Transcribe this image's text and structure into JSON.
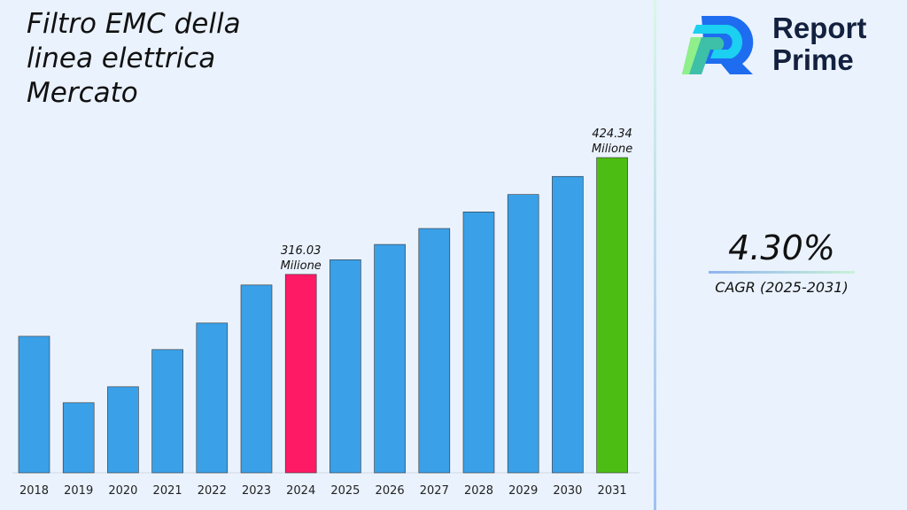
{
  "chart_data": {
    "type": "bar",
    "title": "Filtro EMC della linea elettrica Mercato",
    "categories": [
      "2018",
      "2019",
      "2020",
      "2021",
      "2022",
      "2023",
      "2024",
      "2025",
      "2026",
      "2027",
      "2028",
      "2029",
      "2030",
      "2031"
    ],
    "values": [
      258.6,
      197.0,
      211.8,
      246.3,
      270.9,
      306.2,
      316.03,
      329.6,
      343.8,
      358.6,
      374.0,
      390.1,
      406.9,
      424.34
    ],
    "ylim": [
      132,
      430
    ],
    "grid": false,
    "colors": {
      "default": "#3aa0e8",
      "highlight": "#ff1a66",
      "final": "#4cbd12"
    },
    "highlight_index": 6,
    "final_index": 13,
    "annotations": [
      {
        "index": 6,
        "value": "316.03",
        "unit": "Milione"
      },
      {
        "index": 13,
        "value": "424.34",
        "unit": "Milione"
      }
    ]
  },
  "brand": {
    "line1": "Report",
    "line2": "Prime"
  },
  "cagr": {
    "value": "4.30%",
    "label": "CAGR (2025-2031)"
  }
}
